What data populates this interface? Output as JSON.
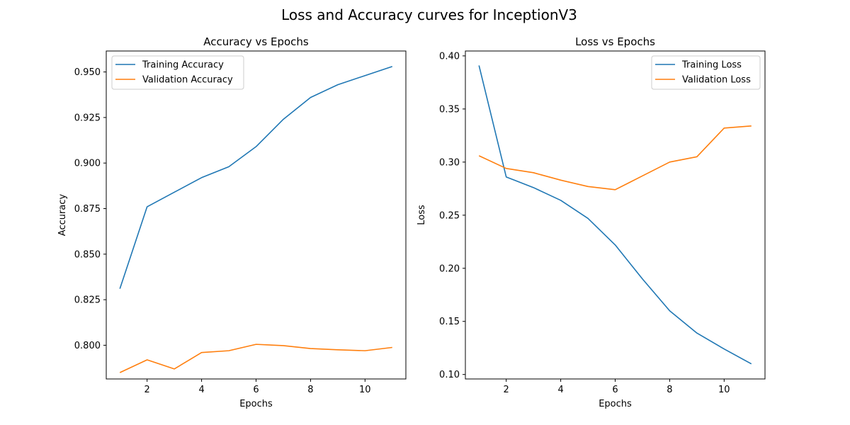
{
  "figure": {
    "title": "Loss and Accuracy curves for InceptionV3"
  },
  "chart_data": [
    {
      "type": "line",
      "title": "Accuracy vs Epochs",
      "xlabel": "Epochs",
      "ylabel": "Accuracy",
      "x": [
        1,
        2,
        3,
        4,
        5,
        6,
        7,
        8,
        9,
        10,
        11
      ],
      "xlim": [
        0.5,
        11.5
      ],
      "ylim": [
        0.7815,
        0.9615
      ],
      "xticks": [
        2,
        4,
        6,
        8,
        10
      ],
      "yticks": [
        "0.800",
        "0.825",
        "0.850",
        "0.875",
        "0.900",
        "0.925",
        "0.950"
      ],
      "grid": false,
      "legend_loc": "upper left",
      "series": [
        {
          "name": "Training Accuracy",
          "color": "#1f77b4",
          "values": [
            0.831,
            0.876,
            0.884,
            0.892,
            0.898,
            0.909,
            0.924,
            0.936,
            0.943,
            0.948,
            0.953
          ]
        },
        {
          "name": "Validation Accuracy",
          "color": "#ff7f0e",
          "values": [
            0.785,
            0.792,
            0.787,
            0.796,
            0.797,
            0.8005,
            0.7998,
            0.7982,
            0.7975,
            0.797,
            0.7988
          ]
        }
      ]
    },
    {
      "type": "line",
      "title": "Loss vs Epochs",
      "xlabel": "Epochs",
      "ylabel": "Loss",
      "x": [
        1,
        2,
        3,
        4,
        5,
        6,
        7,
        8,
        9,
        10,
        11
      ],
      "xlim": [
        0.5,
        11.5
      ],
      "ylim": [
        0.0958,
        0.4046
      ],
      "xticks": [
        2,
        4,
        6,
        8,
        10
      ],
      "yticks": [
        "0.10",
        "0.15",
        "0.20",
        "0.25",
        "0.30",
        "0.35",
        "0.40"
      ],
      "grid": false,
      "legend_loc": "upper right",
      "series": [
        {
          "name": "Training Loss",
          "color": "#1f77b4",
          "values": [
            0.391,
            0.286,
            0.276,
            0.264,
            0.247,
            0.222,
            0.19,
            0.16,
            0.139,
            0.124,
            0.11
          ]
        },
        {
          "name": "Validation Loss",
          "color": "#ff7f0e",
          "values": [
            0.306,
            0.294,
            0.29,
            0.283,
            0.277,
            0.274,
            0.287,
            0.3,
            0.305,
            0.332,
            0.334
          ]
        }
      ]
    }
  ]
}
